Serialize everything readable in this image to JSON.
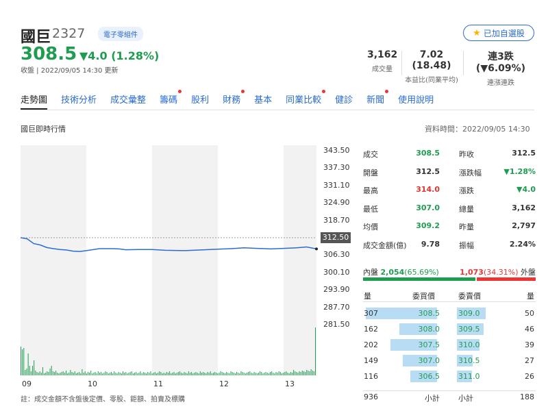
{
  "stock": {
    "name": "國巨",
    "code": "2327",
    "category": "電子零組件",
    "watch_label": "已加自選股",
    "price": "308.5",
    "change": "▼4.0 (1.28%)",
    "updated": "收盤 | 2022/09/05 14:30 更新"
  },
  "stats": [
    {
      "value": "3,162",
      "label": "成交量"
    },
    {
      "value": "7.02 (18.48)",
      "label": "本益比(同業平均)"
    },
    {
      "value": "連3跌 (▼6.09%)",
      "label": "連漲連跌"
    }
  ],
  "tabs": [
    {
      "label": "走勢圖",
      "dot": false
    },
    {
      "label": "技術分析",
      "dot": false
    },
    {
      "label": "成交彙整",
      "dot": false
    },
    {
      "label": "籌碼",
      "dot": true
    },
    {
      "label": "股利",
      "dot": false
    },
    {
      "label": "財務",
      "dot": true
    },
    {
      "label": "基本",
      "dot": false
    },
    {
      "label": "同業比較",
      "dot": true
    },
    {
      "label": "健診",
      "dot": false
    },
    {
      "label": "新聞",
      "dot": true
    },
    {
      "label": "使用說明",
      "dot": false
    }
  ],
  "section": {
    "title": "國巨即時行情",
    "data_time": "資料時間：2022/09/05 14:30"
  },
  "chart_data": {
    "type": "line",
    "y_ticks": [
      "343.50",
      "337.30",
      "331.10",
      "324.90",
      "318.70",
      "312.50",
      "306.30",
      "300.10",
      "293.90",
      "287.70",
      "281.50"
    ],
    "x_ticks": [
      "09",
      "10",
      "11",
      "12",
      "13"
    ],
    "ylim": [
      281.5,
      343.5
    ],
    "xlim": [
      9,
      13.5
    ],
    "reference": 312.5,
    "reference_label": "312.50",
    "series": [
      {
        "x": [
          9.0,
          9.1,
          9.2,
          9.3,
          9.4,
          9.5,
          9.6,
          9.7,
          9.8,
          9.9,
          10.0,
          10.2,
          10.4,
          10.5,
          10.6,
          10.8,
          11.0,
          11.2,
          11.5,
          11.8,
          12.0,
          12.2,
          12.4,
          12.6,
          12.8,
          13.0,
          13.2,
          13.35,
          13.5
        ],
        "y": [
          312.5,
          312.1,
          310.4,
          309.9,
          309.0,
          308.6,
          308.3,
          308.1,
          307.7,
          307.6,
          307.9,
          308.6,
          308.6,
          308.5,
          308.2,
          308.3,
          308.3,
          308.0,
          307.9,
          308.2,
          308.4,
          308.6,
          308.9,
          308.7,
          308.5,
          308.7,
          308.9,
          309.2,
          308.5
        ]
      }
    ],
    "volume": [
      42,
      38,
      40,
      8,
      10,
      32,
      14,
      6,
      14,
      22,
      7,
      5,
      4,
      6,
      4,
      12,
      3,
      4,
      6,
      5,
      10,
      14,
      6,
      5,
      7,
      4,
      3,
      4,
      5,
      6,
      4,
      7,
      3,
      4,
      8,
      5,
      4,
      6,
      3,
      4,
      5,
      3,
      9,
      4,
      6,
      3,
      5,
      4,
      7,
      3,
      4,
      5,
      3,
      6,
      4,
      5,
      3,
      4,
      6,
      5,
      3,
      4,
      5,
      3,
      6,
      4,
      3,
      5,
      4,
      3,
      6,
      4,
      5,
      3,
      4,
      5,
      6,
      3,
      4,
      5,
      3,
      4,
      6,
      3,
      5,
      4,
      3,
      5,
      4,
      6,
      3,
      4,
      5,
      3,
      4,
      6,
      5,
      3,
      4,
      3,
      5,
      4,
      6,
      3,
      4,
      5,
      3,
      4,
      5,
      6,
      4,
      3,
      5,
      4,
      3,
      6,
      4,
      5,
      3,
      4,
      5,
      4,
      3,
      6,
      4,
      5,
      4,
      3,
      5,
      4,
      6,
      3,
      4,
      5,
      4,
      3,
      4,
      6,
      5,
      4,
      3,
      5,
      4,
      3,
      6,
      5,
      4,
      3,
      5,
      4,
      3,
      6,
      5,
      4,
      3,
      4,
      5,
      6,
      4,
      3,
      5,
      4,
      3,
      4,
      6,
      5,
      3,
      4,
      5,
      4,
      3,
      5,
      6,
      4,
      3,
      5,
      4,
      6,
      5,
      3,
      4,
      5,
      6,
      4,
      3,
      5,
      4,
      8,
      6,
      5,
      4,
      6,
      5,
      7,
      6,
      5,
      8,
      7,
      6,
      9,
      7,
      6,
      70
    ]
  },
  "chart_note": "註：成交金額不含盤後定價、零股、鉅額、拍賣及標購",
  "quote_rows": [
    [
      {
        "label": "成交",
        "value": "308.5",
        "color": "#1e9c50"
      },
      {
        "label": "昨收",
        "value": "312.5",
        "color": "#333333"
      }
    ],
    [
      {
        "label": "開盤",
        "value": "312.5",
        "color": "#333333"
      },
      {
        "label": "漲跌幅",
        "value": "▼1.28%",
        "color": "#1e9c50"
      }
    ],
    [
      {
        "label": "最高",
        "value": "314.0",
        "color": "#e33333"
      },
      {
        "label": "漲跌",
        "value": "▼4.0",
        "color": "#1e9c50"
      }
    ],
    [
      {
        "label": "最低",
        "value": "307.0",
        "color": "#1e9c50"
      },
      {
        "label": "總量",
        "value": "3,162",
        "color": "#333333"
      }
    ],
    [
      {
        "label": "均價",
        "value": "309.2",
        "color": "#1e9c50"
      },
      {
        "label": "昨量",
        "value": "2,797",
        "color": "#333333"
      }
    ],
    [
      {
        "label": "成交金額(億)",
        "value": "9.78",
        "color": "#333333"
      },
      {
        "label": "振幅",
        "value": "2.24%",
        "color": "#333333"
      }
    ]
  ],
  "inout": {
    "in_label": "內盤",
    "in_value": "2,054",
    "in_pct": "(65.69%)",
    "out_value": "1,073",
    "out_pct": "(34.31%)",
    "out_label": "外盤",
    "in_fraction": 0.6569
  },
  "orderbook": {
    "headers": [
      "量",
      "委買價",
      "委賣價",
      "量"
    ],
    "rows": [
      {
        "bid_qty": "307",
        "bid": "308.5",
        "ask": "309.0",
        "ask_qty": "50"
      },
      {
        "bid_qty": "162",
        "bid": "308.0",
        "ask": "309.5",
        "ask_qty": "46"
      },
      {
        "bid_qty": "202",
        "bid": "307.5",
        "ask": "310.0",
        "ask_qty": "39"
      },
      {
        "bid_qty": "149",
        "bid": "307.0",
        "ask": "310.5",
        "ask_qty": "27"
      },
      {
        "bid_qty": "116",
        "bid": "306.5",
        "ask": "311.0",
        "ask_qty": "26"
      }
    ],
    "bid_total": "936",
    "bid_total_label": "小計",
    "ask_total_label": "小計",
    "ask_total": "188"
  }
}
